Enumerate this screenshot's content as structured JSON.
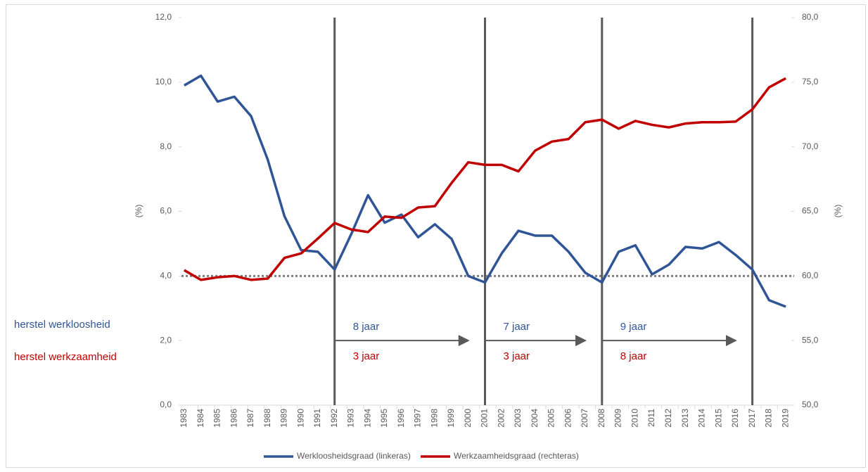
{
  "chart_data": {
    "type": "line",
    "categories": [
      "1983",
      "1984",
      "1985",
      "1986",
      "1987",
      "1988",
      "1989",
      "1990",
      "1991",
      "1992",
      "1993",
      "1994",
      "1995",
      "1996",
      "1997",
      "1998",
      "1999",
      "2000",
      "2001",
      "2002",
      "2003",
      "2004",
      "2005",
      "2006",
      "2007",
      "2008",
      "2009",
      "2010",
      "2011",
      "2012",
      "2013",
      "2014",
      "2015",
      "2016",
      "2017",
      "2018",
      "2019"
    ],
    "series": [
      {
        "name": "Werkloosheidsgraad (linkeras)",
        "color": "#2f5597",
        "axis": "y",
        "values": [
          9.9,
          10.2,
          9.4,
          9.55,
          8.95,
          7.6,
          5.85,
          4.8,
          4.75,
          4.2,
          5.3,
          6.5,
          5.65,
          5.9,
          5.2,
          5.6,
          5.15,
          4.0,
          3.8,
          4.7,
          5.4,
          5.25,
          5.25,
          4.75,
          4.1,
          3.8,
          4.75,
          4.95,
          4.05,
          4.35,
          4.9,
          4.85,
          5.05,
          4.65,
          4.2,
          3.25,
          3.05
        ]
      },
      {
        "name": "Werkzaamheidsgraad (rechteras)",
        "color": "#c00000",
        "axis": "y2",
        "values": [
          60.45,
          59.7,
          59.9,
          60.0,
          59.7,
          59.8,
          61.4,
          61.75,
          62.9,
          64.1,
          63.6,
          63.4,
          64.6,
          64.5,
          65.3,
          65.4,
          67.2,
          68.8,
          68.6,
          68.6,
          68.1,
          69.7,
          70.4,
          70.6,
          71.9,
          72.1,
          71.4,
          72.0,
          71.7,
          71.5,
          71.8,
          71.9,
          71.9,
          71.95,
          72.9,
          74.6,
          75.3
        ]
      }
    ],
    "ylabel": "(%)",
    "y2label": "(%)",
    "ylim": [
      0,
      12
    ],
    "yticks": [
      {
        "value": 0,
        "label": "0,0"
      },
      {
        "value": 2,
        "label": "2,0"
      },
      {
        "value": 4,
        "label": "4,0"
      },
      {
        "value": 6,
        "label": "6,0"
      },
      {
        "value": 8,
        "label": "8,0"
      },
      {
        "value": 10,
        "label": "10,0"
      },
      {
        "value": 12,
        "label": "12,0"
      }
    ],
    "y2lim": [
      50,
      80
    ],
    "y2ticks": [
      {
        "value": 50,
        "label": "50,0"
      },
      {
        "value": 55,
        "label": "55,0"
      },
      {
        "value": 60,
        "label": "60,0"
      },
      {
        "value": 65,
        "label": "65,0"
      },
      {
        "value": 70,
        "label": "70,0"
      },
      {
        "value": 75,
        "label": "75,0"
      },
      {
        "value": 80,
        "label": "80,0"
      }
    ],
    "reference_line": 4,
    "vlines": [
      "1992",
      "2001",
      "2008",
      "2017"
    ],
    "arrows": [
      {
        "from": "1992",
        "to": "2000",
        "y": 2,
        "top": "8 jaar",
        "bottom": "3 jaar"
      },
      {
        "from": "2001",
        "to": "2007",
        "y": 2,
        "top": "7 jaar",
        "bottom": "3 jaar"
      },
      {
        "from": "2008",
        "to": "2016",
        "y": 2,
        "top": "9 jaar",
        "bottom": "8 jaar"
      }
    ],
    "side_labels": [
      {
        "text": "herstel werkloosheid",
        "color": "#2f5597"
      },
      {
        "text": "herstel werkzaamheid",
        "color": "#c00000"
      }
    ],
    "legend": "bottom"
  }
}
